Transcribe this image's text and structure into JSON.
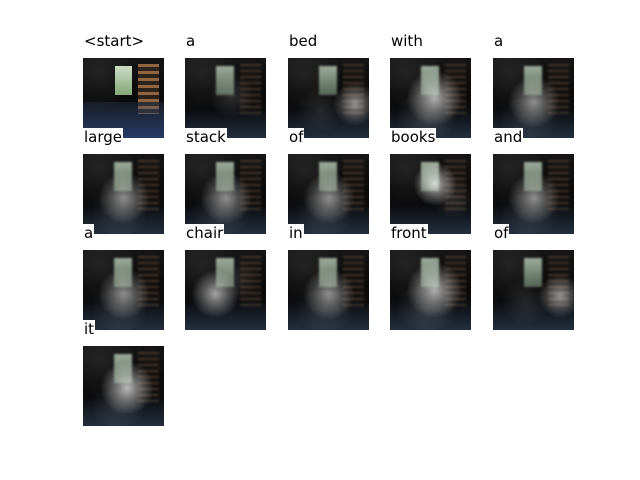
{
  "captions": [
    {
      "word": "<start>",
      "variant": "start"
    },
    {
      "word": "a",
      "variant": "dark"
    },
    {
      "word": "bed",
      "variant": "right"
    },
    {
      "word": "with",
      "variant": "bright"
    },
    {
      "word": "a",
      "variant": "mid"
    },
    {
      "word": "large",
      "variant": "mid"
    },
    {
      "word": "stack",
      "variant": "mid"
    },
    {
      "word": "of",
      "variant": "mid"
    },
    {
      "word": "books",
      "variant": "window"
    },
    {
      "word": "and",
      "variant": "mid"
    },
    {
      "word": "a",
      "variant": "mid"
    },
    {
      "word": "chair",
      "variant": "chair"
    },
    {
      "word": "in",
      "variant": "mid"
    },
    {
      "word": "front",
      "variant": "bright"
    },
    {
      "word": "of",
      "variant": "right"
    },
    {
      "word": "it",
      "variant": "center"
    }
  ]
}
